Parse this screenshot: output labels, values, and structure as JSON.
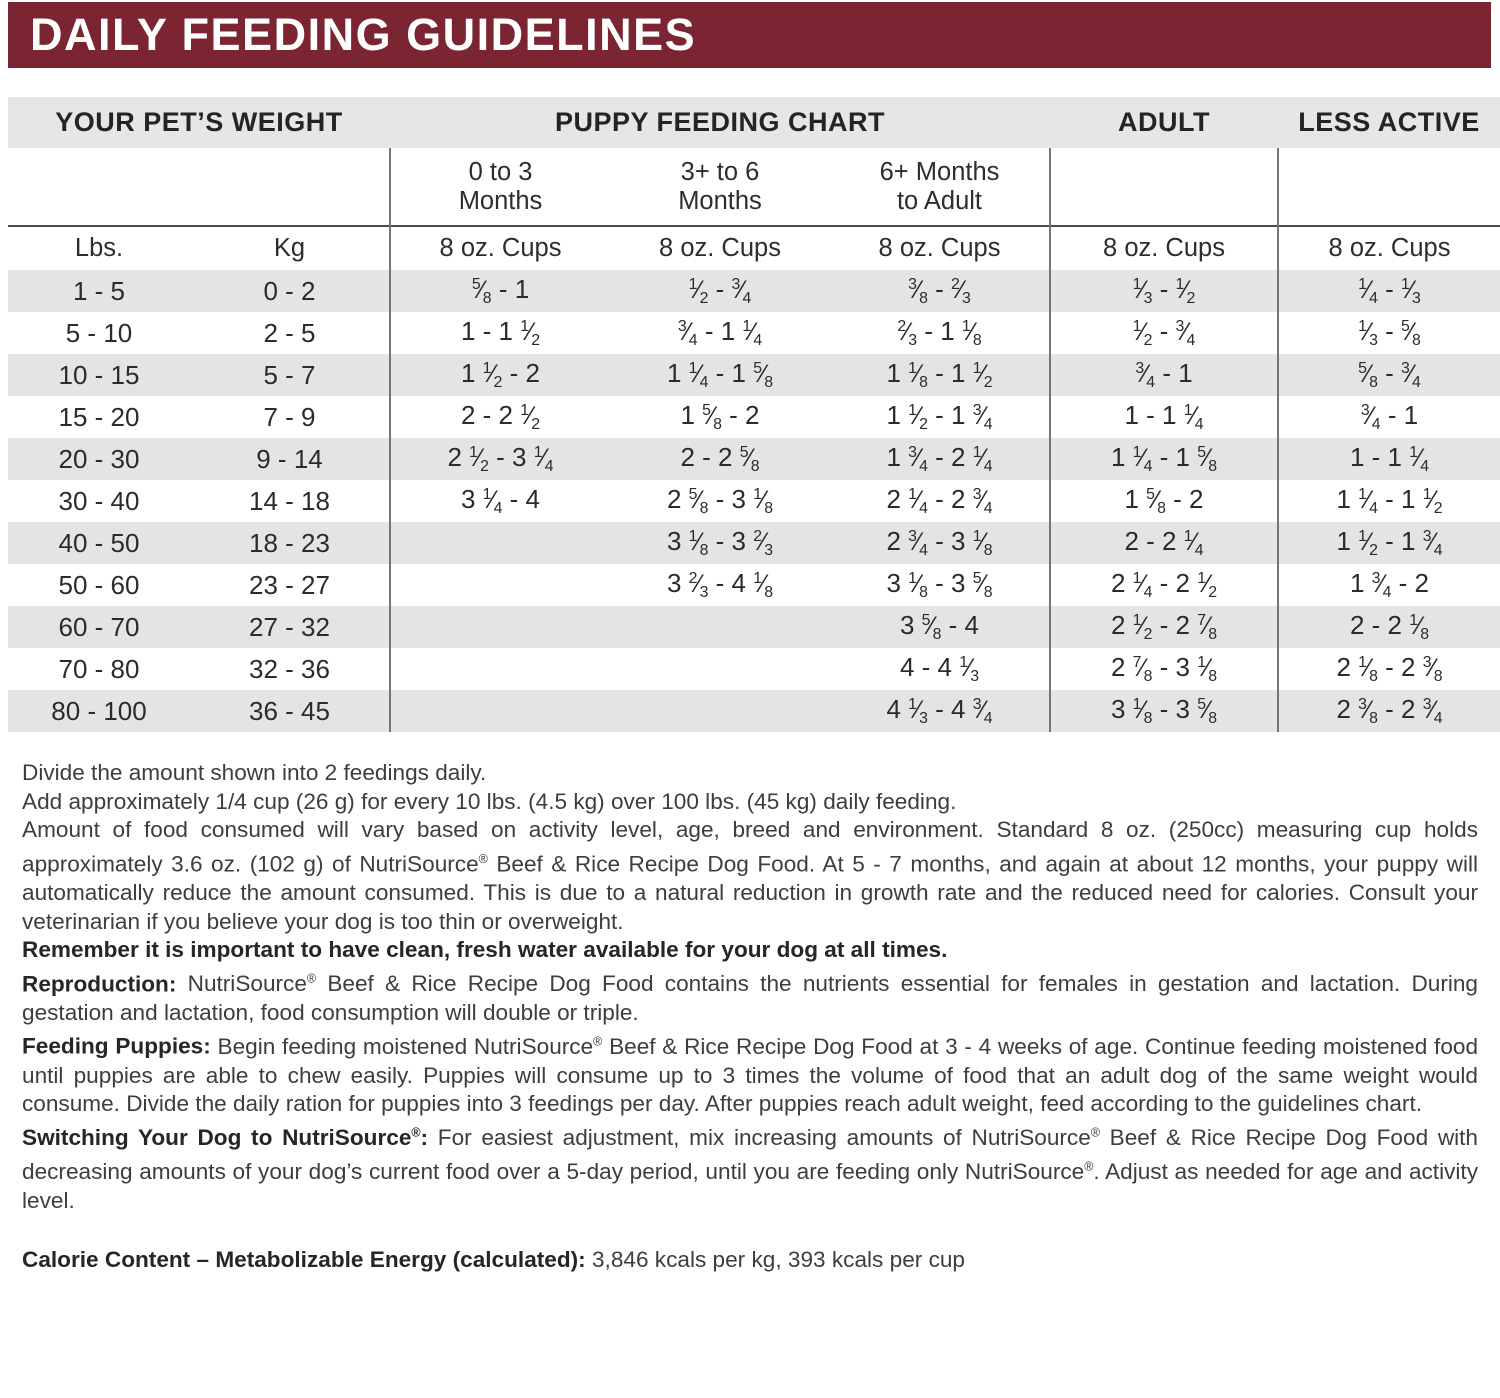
{
  "banner": {
    "title": "DAILY FEEDING GUIDELINES",
    "bg_color": "#7b2532",
    "text_color": "#ffffff"
  },
  "table": {
    "stripe_color": "#e5e4e2",
    "header_bg_color": "#e7e6e4",
    "group_headers": {
      "weight": "YOUR PET’S WEIGHT",
      "puppy": "PUPPY FEEDING CHART",
      "adult": "ADULT",
      "less_active": "LESS ACTIVE"
    },
    "age_headers": [
      "0 to 3\nMonths",
      "3+ to 6\nMonths",
      "6+ Months\nto Adult"
    ],
    "unit_headers": [
      "Lbs.",
      "Kg",
      "8 oz. Cups",
      "8 oz. Cups",
      "8 oz. Cups",
      "8 oz. Cups",
      "8 oz. Cups"
    ],
    "rows": [
      {
        "lbs": "1 - 5",
        "kg": "0 - 2",
        "p0_3": "5/8 - 1",
        "p3_6": "1/2 - 3/4",
        "p6_adult": "3/8 - 2/3",
        "adult": "1/3 - 1/2",
        "less_active": "1/4 - 1/3"
      },
      {
        "lbs": "5 - 10",
        "kg": "2 - 5",
        "p0_3": "1 - 1 1/2",
        "p3_6": "3/4 - 1 1/4",
        "p6_adult": "2/3 - 1 1/8",
        "adult": "1/2 - 3/4",
        "less_active": "1/3 - 5/8"
      },
      {
        "lbs": "10 - 15",
        "kg": "5 - 7",
        "p0_3": "1 1/2 - 2",
        "p3_6": "1 1/4 - 1 5/8",
        "p6_adult": "1 1/8 - 1 1/2",
        "adult": "3/4 - 1",
        "less_active": "5/8 - 3/4"
      },
      {
        "lbs": "15 - 20",
        "kg": "7 - 9",
        "p0_3": "2 - 2 1/2",
        "p3_6": "1 5/8 - 2",
        "p6_adult": "1 1/2 - 1 3/4",
        "adult": "1 - 1 1/4",
        "less_active": "3/4 - 1"
      },
      {
        "lbs": "20 - 30",
        "kg": "9 - 14",
        "p0_3": "2 1/2 - 3 1/4",
        "p3_6": "2 - 2 5/8",
        "p6_adult": "1 3/4 - 2 1/4",
        "adult": "1 1/4 - 1 5/8",
        "less_active": "1 - 1 1/4"
      },
      {
        "lbs": "30 - 40",
        "kg": "14 - 18",
        "p0_3": "3 1/4 - 4",
        "p3_6": "2 5/8 - 3 1/8",
        "p6_adult": "2 1/4 - 2 3/4",
        "adult": "1 5/8 - 2",
        "less_active": "1 1/4 - 1 1/2"
      },
      {
        "lbs": "40 - 50",
        "kg": "18 - 23",
        "p0_3": "",
        "p3_6": "3 1/8 - 3 2/3",
        "p6_adult": "2 3/4 - 3 1/8",
        "adult": "2 - 2 1/4",
        "less_active": "1 1/2 - 1 3/4"
      },
      {
        "lbs": "50 - 60",
        "kg": "23 - 27",
        "p0_3": "",
        "p3_6": "3 2/3 - 4 1/8",
        "p6_adult": "3 1/8 - 3 5/8",
        "adult": "2 1/4 - 2 1/2",
        "less_active": "1 3/4 - 2"
      },
      {
        "lbs": "60 - 70",
        "kg": "27 - 32",
        "p0_3": "",
        "p3_6": "",
        "p6_adult": "3 5/8 - 4",
        "adult": "2 1/2 - 2 7/8",
        "less_active": "2 - 2 1/8"
      },
      {
        "lbs": "70 - 80",
        "kg": "32 - 36",
        "p0_3": "",
        "p3_6": "",
        "p6_adult": "4 - 4 1/3",
        "adult": "2 7/8 - 3 1/8",
        "less_active": "2 1/8 - 2 3/8"
      },
      {
        "lbs": "80 - 100",
        "kg": "36 - 45",
        "p0_3": "",
        "p3_6": "",
        "p6_adult": "4 1/3 - 4 3/4",
        "adult": "3 1/8 - 3 5/8",
        "less_active": "2 3/8 - 2 3/4"
      }
    ]
  },
  "notes": {
    "divide": "Divide the amount shown into 2 feedings daily.",
    "add": "Add approximately 1/4 cup (26 g) for every 10 lbs. (4.5 kg) over 100 lbs. (45 kg) daily feeding.",
    "amount": "Amount of food consumed will vary based on activity level, age, breed and environment. Standard 8 oz. (250cc) measuring cup holds approximately 3.6 oz. (102 g) of NutriSource® Beef & Rice Recipe Dog Food. At 5 - 7 months, and again at about 12 months, your puppy will automatically reduce the amount consumed. This is due to a natural reduction in growth rate and the reduced need for calories. Consult your veterinarian if you believe your dog is too thin or overweight.",
    "water": "Remember it is important to have clean, fresh water available for your dog at all times."
  },
  "sections": {
    "reproduction": {
      "lead": "Reproduction:",
      "body": "NutriSource® Beef & Rice Recipe Dog Food contains the nutrients essential for females in gestation and lactation. During gestation and lactation, food consumption will double or triple."
    },
    "feeding_puppies": {
      "lead": "Feeding Puppies:",
      "body": "Begin feeding moistened NutriSource® Beef & Rice Recipe Dog Food at 3 - 4 weeks of age. Continue feeding moistened food until puppies are able to chew easily. Puppies will consume up to 3 times the volume of food that an adult dog of the same weight would consume. Divide the daily ration for puppies into 3 feedings per day. After puppies reach adult weight, feed according to the guidelines chart."
    },
    "switching": {
      "lead": "Switching Your Dog to NutriSource®:",
      "body": "For easiest adjustment, mix increasing amounts of NutriSource® Beef & Rice Recipe Dog Food with decreasing amounts of your dog’s current food over a 5-day period, until you are feeding only NutriSource®. Adjust as needed for age and activity level."
    },
    "calorie": {
      "lead": "Calorie Content – Metabolizable Energy (calculated):",
      "body": "3,846 kcals per kg, 393 kcals per cup"
    }
  }
}
